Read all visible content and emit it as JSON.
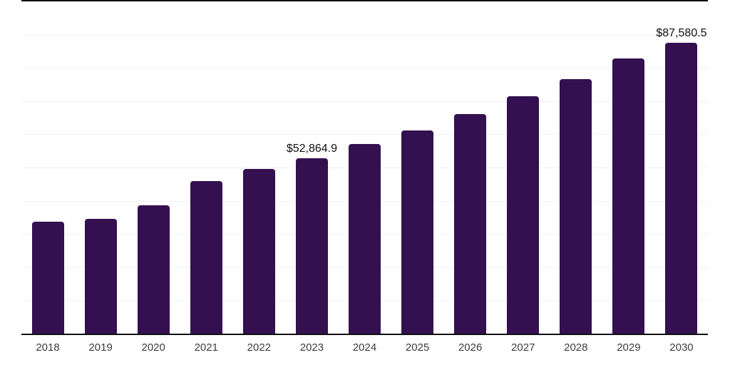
{
  "chart_data": {
    "type": "bar",
    "categories": [
      "2018",
      "2019",
      "2020",
      "2021",
      "2022",
      "2023",
      "2024",
      "2025",
      "2026",
      "2027",
      "2028",
      "2029",
      "2030"
    ],
    "values": [
      33700,
      34500,
      38600,
      45900,
      49600,
      52864.9,
      57000,
      61100,
      66000,
      71400,
      76600,
      82800,
      87580.5
    ],
    "bar_labels": [
      "",
      "",
      "",
      "",
      "",
      "$52,864.9",
      "",
      "",
      "",
      "",
      "",
      "",
      "$87,580.5"
    ],
    "ylim": [
      0,
      100000
    ],
    "gridline_interval": 10000,
    "grid": "horizontal",
    "y_tick_labels_visible": false,
    "legend": "none",
    "colors": {
      "bar": "#341050",
      "value_label": "#0f0f0f",
      "x_label": "#3d3d3d",
      "gridline": "#f2f2f2",
      "axis_line": "#111111",
      "background": "#ffffff"
    }
  }
}
